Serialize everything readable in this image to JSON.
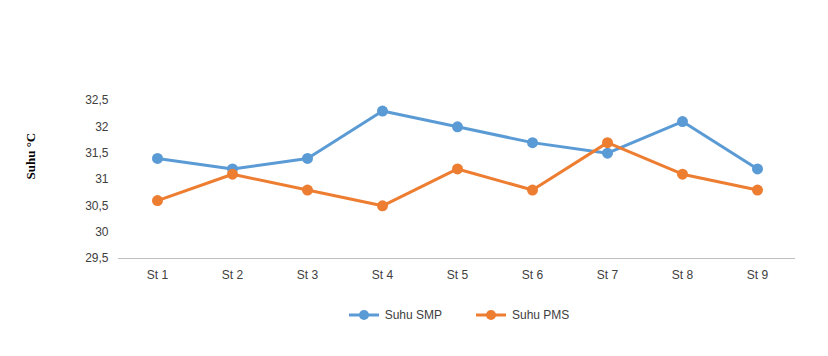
{
  "chart_data": {
    "type": "line",
    "y_label": "Suhu °C",
    "categories": [
      "St 1",
      "St 2",
      "St 3",
      "St 4",
      "St 5",
      "St 6",
      "St 7",
      "St 8",
      "St 9"
    ],
    "series": [
      {
        "name": "Suhu SMP",
        "color": "#5B9BD5",
        "marker": "circle",
        "values": [
          31.4,
          31.2,
          31.4,
          32.3,
          32.0,
          31.7,
          31.5,
          32.1,
          31.2
        ]
      },
      {
        "name": "Suhu PMS",
        "color": "#ED7D31",
        "marker": "circle",
        "values": [
          30.6,
          31.1,
          30.8,
          30.5,
          31.2,
          30.8,
          31.7,
          31.1,
          30.8
        ]
      }
    ],
    "ylim": [
      29.5,
      32.5
    ],
    "yticks": [
      {
        "value": 29.5,
        "label": "29,5"
      },
      30,
      {
        "value": 30.5,
        "label": "30,5"
      },
      31,
      {
        "value": 31.5,
        "label": "31,5"
      },
      32,
      {
        "value": 32.5,
        "label": "32,5"
      }
    ],
    "grid": false,
    "legend": "bottom"
  }
}
